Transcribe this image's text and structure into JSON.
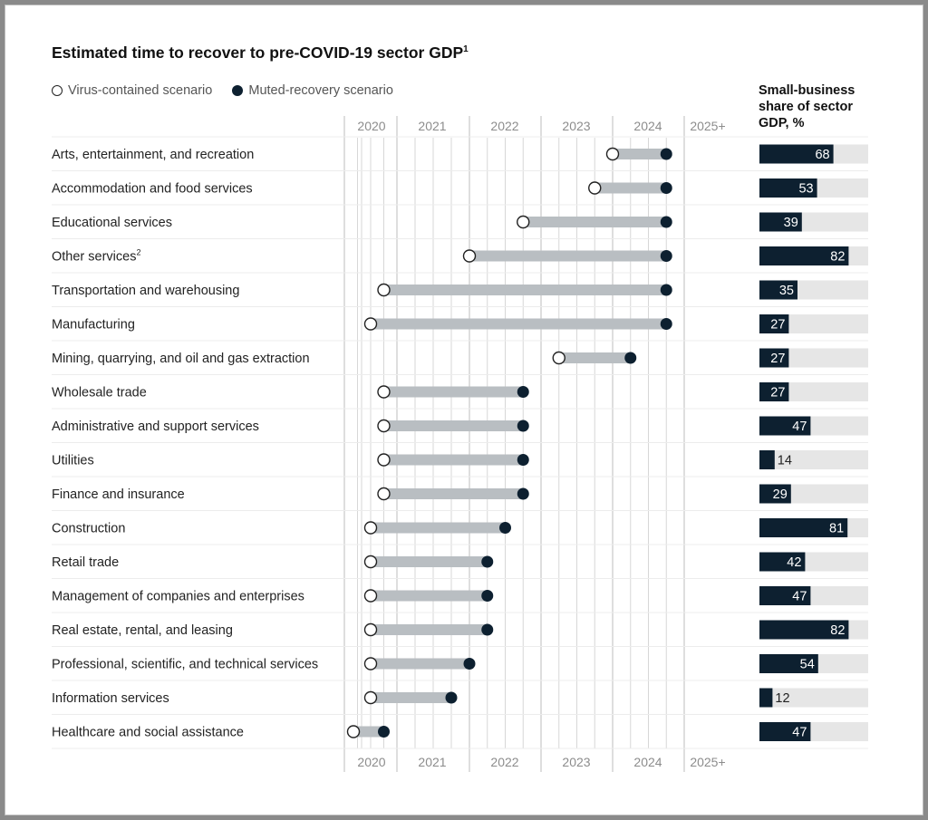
{
  "chart_data": {
    "type": "dumbbell",
    "title": "Estimated time to recover to pre-COVID-19 sector GDP",
    "title_footnote": "1",
    "legend": {
      "virus_contained": "Virus-contained scenario",
      "muted_recovery": "Muted-recovery scenario"
    },
    "side_title": "Small-business share of sector GDP, %",
    "x_ticks": [
      "2020",
      "2021",
      "2022",
      "2023",
      "2024",
      "2025+"
    ],
    "sectors": [
      {
        "name": "Arts, entertainment, and recreation",
        "footnote": "",
        "virus_contained": 2024.0,
        "muted_recovery": 2024.75,
        "small_business_share": 68
      },
      {
        "name": "Accommodation and food services",
        "footnote": "",
        "virus_contained": 2023.75,
        "muted_recovery": 2024.75,
        "small_business_share": 53
      },
      {
        "name": "Educational services",
        "footnote": "",
        "virus_contained": 2022.75,
        "muted_recovery": 2024.75,
        "small_business_share": 39
      },
      {
        "name": "Other services",
        "footnote": "2",
        "virus_contained": 2022.0,
        "muted_recovery": 2024.75,
        "small_business_share": 82
      },
      {
        "name": "Transportation and warehousing",
        "footnote": "",
        "virus_contained": 2020.75,
        "muted_recovery": 2024.75,
        "small_business_share": 35
      },
      {
        "name": "Manufacturing",
        "footnote": "",
        "virus_contained": 2020.5,
        "muted_recovery": 2024.75,
        "small_business_share": 27
      },
      {
        "name": "Mining, quarrying, and oil and gas extraction",
        "footnote": "",
        "virus_contained": 2023.25,
        "muted_recovery": 2024.25,
        "small_business_share": 27
      },
      {
        "name": "Wholesale trade",
        "footnote": "",
        "virus_contained": 2020.75,
        "muted_recovery": 2022.75,
        "small_business_share": 27
      },
      {
        "name": "Administrative and support services",
        "footnote": "",
        "virus_contained": 2020.75,
        "muted_recovery": 2022.75,
        "small_business_share": 47
      },
      {
        "name": "Utilities",
        "footnote": "",
        "virus_contained": 2020.75,
        "muted_recovery": 2022.75,
        "small_business_share": 14
      },
      {
        "name": "Finance and insurance",
        "footnote": "",
        "virus_contained": 2020.75,
        "muted_recovery": 2022.75,
        "small_business_share": 29
      },
      {
        "name": "Construction",
        "footnote": "",
        "virus_contained": 2020.5,
        "muted_recovery": 2022.5,
        "small_business_share": 81
      },
      {
        "name": "Retail trade",
        "footnote": "",
        "virus_contained": 2020.5,
        "muted_recovery": 2022.25,
        "small_business_share": 42
      },
      {
        "name": "Management of companies and enterprises",
        "footnote": "",
        "virus_contained": 2020.5,
        "muted_recovery": 2022.25,
        "small_business_share": 47
      },
      {
        "name": "Real estate, rental, and leasing",
        "footnote": "",
        "virus_contained": 2020.5,
        "muted_recovery": 2022.25,
        "small_business_share": 82
      },
      {
        "name": "Professional, scientific, and technical services",
        "footnote": "",
        "virus_contained": 2020.5,
        "muted_recovery": 2022.0,
        "small_business_share": 54
      },
      {
        "name": "Information services",
        "footnote": "",
        "virus_contained": 2020.5,
        "muted_recovery": 2021.75,
        "small_business_share": 12
      },
      {
        "name": "Healthcare and social assistance",
        "footnote": "",
        "virus_contained": 2020.0,
        "muted_recovery": 2020.75,
        "small_business_share": 47
      }
    ],
    "colors": {
      "dark": "#0d2030",
      "connector": "#b9bec2",
      "track": "#e6e6e6",
      "grid": "#d7d7d7",
      "tick": "#8c8c8c"
    }
  }
}
